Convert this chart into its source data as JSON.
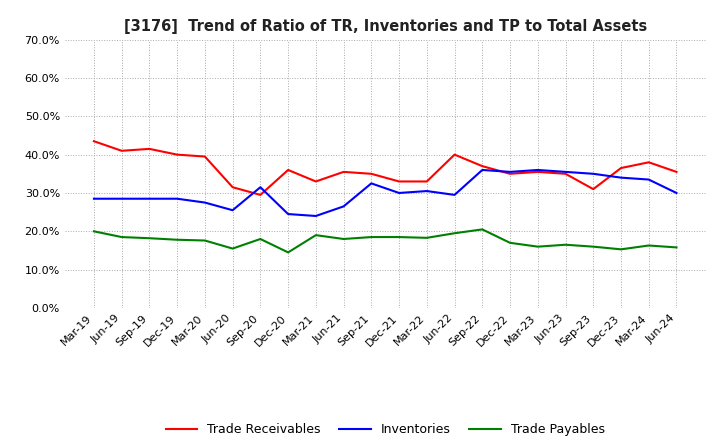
{
  "title": "[3176]  Trend of Ratio of TR, Inventories and TP to Total Assets",
  "x_labels": [
    "Mar-19",
    "Jun-19",
    "Sep-19",
    "Dec-19",
    "Mar-20",
    "Jun-20",
    "Sep-20",
    "Dec-20",
    "Mar-21",
    "Jun-21",
    "Sep-21",
    "Dec-21",
    "Mar-22",
    "Jun-22",
    "Sep-22",
    "Dec-22",
    "Mar-23",
    "Jun-23",
    "Sep-23",
    "Dec-23",
    "Mar-24",
    "Jun-24"
  ],
  "trade_receivables": [
    0.435,
    0.41,
    0.415,
    0.4,
    0.395,
    0.315,
    0.295,
    0.36,
    0.33,
    0.355,
    0.35,
    0.33,
    0.33,
    0.4,
    0.37,
    0.35,
    0.355,
    0.35,
    0.31,
    0.365,
    0.38,
    0.355
  ],
  "inventories": [
    0.285,
    0.285,
    0.285,
    0.285,
    0.275,
    0.255,
    0.315,
    0.245,
    0.24,
    0.265,
    0.325,
    0.3,
    0.305,
    0.295,
    0.36,
    0.355,
    0.36,
    0.355,
    0.35,
    0.34,
    0.335,
    0.3
  ],
  "trade_payables": [
    0.2,
    0.185,
    0.182,
    0.178,
    0.176,
    0.155,
    0.18,
    0.145,
    0.19,
    0.18,
    0.185,
    0.185,
    0.183,
    0.195,
    0.205,
    0.17,
    0.16,
    0.165,
    0.16,
    0.153,
    0.163,
    0.158
  ],
  "tr_color": "#FF0000",
  "inv_color": "#0000FF",
  "tp_color": "#008000",
  "ylim": [
    0.0,
    0.7
  ],
  "yticks": [
    0.0,
    0.1,
    0.2,
    0.3,
    0.4,
    0.5,
    0.6,
    0.7
  ],
  "background_color": "#FFFFFF",
  "grid_color": "#AAAAAA"
}
